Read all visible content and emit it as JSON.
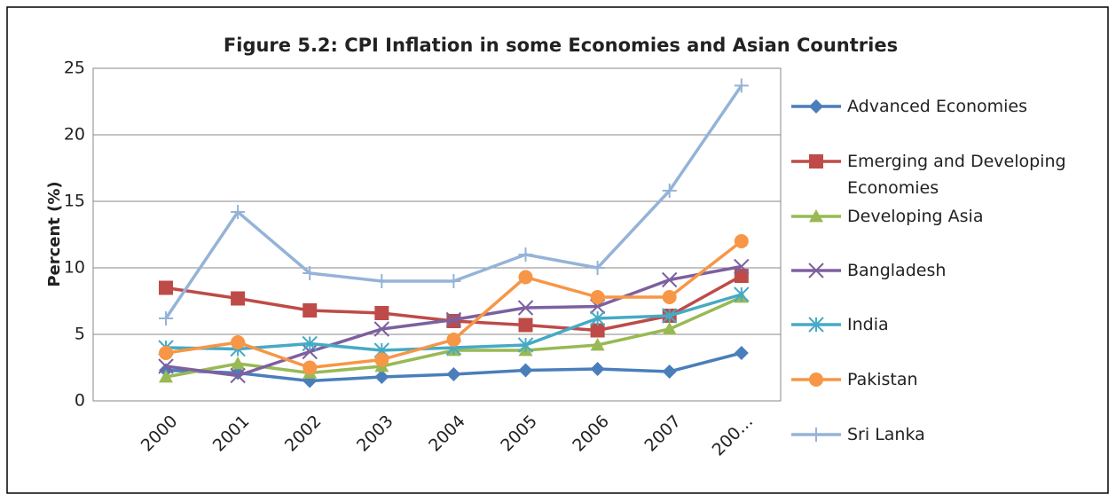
{
  "chart_data": {
    "type": "line",
    "title": "Figure 5.2: CPI Inflation in some Economies and Asian Countries",
    "y_label": "Percent (%)",
    "categories": [
      "2000",
      "2001",
      "2002",
      "2003",
      "2004",
      "2005",
      "2006",
      "2007",
      "200…"
    ],
    "ylim": [
      0,
      25
    ],
    "yticks": [
      0,
      5,
      10,
      15,
      20,
      25
    ],
    "grid": true,
    "legend": "right",
    "series": [
      {
        "name": "Advanced Economies",
        "color": "#4a7ebb",
        "marker": "diamond",
        "values": [
          2.3,
          2.1,
          1.5,
          1.8,
          2.0,
          2.3,
          2.4,
          2.2,
          3.6
        ]
      },
      {
        "name": "Emerging and Developing Economies",
        "color": "#be4b48",
        "marker": "square",
        "values": [
          8.5,
          7.7,
          6.8,
          6.6,
          6.0,
          5.7,
          5.3,
          6.4,
          9.4
        ]
      },
      {
        "name": "Developing Asia",
        "color": "#98b954",
        "marker": "triangle",
        "values": [
          1.8,
          2.8,
          2.1,
          2.6,
          3.8,
          3.8,
          4.2,
          5.4,
          7.8
        ]
      },
      {
        "name": "Bangladesh",
        "color": "#7d60a0",
        "marker": "x",
        "values": [
          2.6,
          1.9,
          3.7,
          5.4,
          6.1,
          7.0,
          7.1,
          9.1,
          10.1
        ]
      },
      {
        "name": "India",
        "color": "#46aac5",
        "marker": "star",
        "values": [
          4.0,
          3.9,
          4.3,
          3.8,
          4.0,
          4.2,
          6.2,
          6.4,
          8.0
        ]
      },
      {
        "name": "Pakistan",
        "color": "#f79646",
        "marker": "circle",
        "values": [
          3.6,
          4.4,
          2.5,
          3.1,
          4.6,
          9.3,
          7.8,
          7.8,
          12.0
        ]
      },
      {
        "name": "Sri Lanka",
        "color": "#95b3d7",
        "marker": "plus",
        "values": [
          6.2,
          14.2,
          9.6,
          9.0,
          9.0,
          11.0,
          10.0,
          15.8,
          23.7
        ]
      }
    ]
  }
}
